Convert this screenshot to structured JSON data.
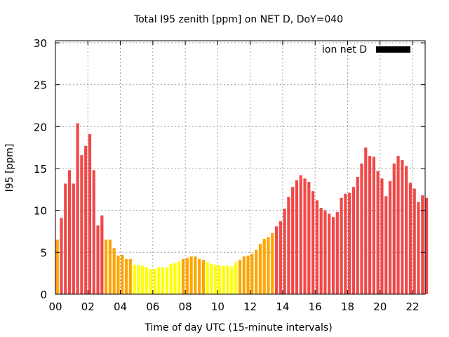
{
  "chart_data": {
    "type": "bar",
    "title": "Total I95 zenith [ppm] on NET D, DoY=040",
    "xlabel": "Time of day UTC (15-minute intervals)",
    "ylabel": "I95 [ppm]",
    "ylim": [
      0,
      30
    ],
    "xlim_hours": [
      0,
      22.75
    ],
    "yticks": [
      "0",
      "5",
      "10",
      "15",
      "20",
      "25",
      "30"
    ],
    "xticks": [
      "00",
      "02",
      "04",
      "06",
      "08",
      "10",
      "12",
      "14",
      "16",
      "18",
      "20",
      "22"
    ],
    "grid": true,
    "legend": {
      "label": "ion net D",
      "color": "#000000",
      "placement": "top-right"
    },
    "interval_minutes": 15,
    "color_thresholds": {
      "yellow_below": 4,
      "orange_below": 8
    },
    "colors": {
      "red": "#f04848",
      "orange": "#ffa500",
      "yellow": "#ffff00"
    },
    "values": [
      6.5,
      9.1,
      13.2,
      14.8,
      13.2,
      20.4,
      16.6,
      17.7,
      19.1,
      14.8,
      8.2,
      9.4,
      6.5,
      6.5,
      5.5,
      4.6,
      4.7,
      4.2,
      4.2,
      3.5,
      3.5,
      3.4,
      3.2,
      3.0,
      3.0,
      3.2,
      3.2,
      3.2,
      3.6,
      3.7,
      3.9,
      4.2,
      4.3,
      4.5,
      4.5,
      4.2,
      4.1,
      3.8,
      3.6,
      3.5,
      3.4,
      3.4,
      3.4,
      3.3,
      3.8,
      4.1,
      4.5,
      4.6,
      4.8,
      5.3,
      6.0,
      6.6,
      6.8,
      7.3,
      8.1,
      8.7,
      10.2,
      11.6,
      12.8,
      13.6,
      14.2,
      13.8,
      13.4,
      12.3,
      11.2,
      10.3,
      10.0,
      9.6,
      9.2,
      9.8,
      11.5,
      12.0,
      12.1,
      12.8,
      14.0,
      15.6,
      17.5,
      16.5,
      16.4,
      14.7,
      13.8,
      11.7,
      13.5,
      15.6,
      16.5,
      16.0,
      15.3,
      13.3,
      12.6,
      11.0,
      11.8,
      11.5
    ]
  }
}
